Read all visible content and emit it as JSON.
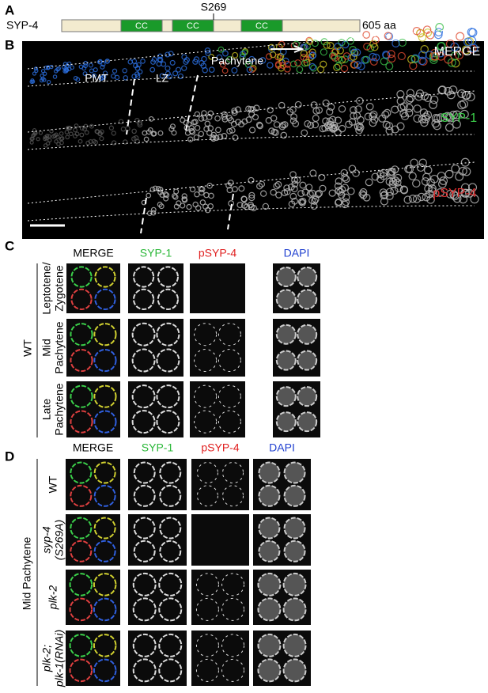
{
  "panel_a": {
    "label": "A",
    "protein": "SYP-4",
    "site": "S269",
    "domains": [
      "CC",
      "CC",
      "CC"
    ],
    "length": "605 aa"
  },
  "panel_b": {
    "label": "B",
    "regions": [
      "PMT",
      "LZ",
      "Pachytene"
    ],
    "channels": [
      "MERGE",
      "SYP-1",
      "pSYP-4"
    ]
  },
  "panel_c": {
    "label": "C",
    "columns": [
      "MERGE",
      "SYP-1",
      "pSYP-4",
      "DAPI"
    ],
    "genotype": "WT",
    "rows": [
      [
        "Leptotene/",
        "Zygotene"
      ],
      [
        "Mid",
        "Pachytene"
      ],
      [
        "Late",
        "Pachytene"
      ]
    ]
  },
  "panel_d": {
    "label": "D",
    "columns": [
      "MERGE",
      "SYP-1",
      "pSYP-4",
      "DAPI"
    ],
    "stage": "Mid Pachytene",
    "rows": [
      [
        "WT"
      ],
      [
        "syp-4",
        "(S269A)"
      ],
      [
        "plk-2"
      ],
      [
        "plk-2;",
        "plk-1(RNAi)"
      ]
    ]
  }
}
